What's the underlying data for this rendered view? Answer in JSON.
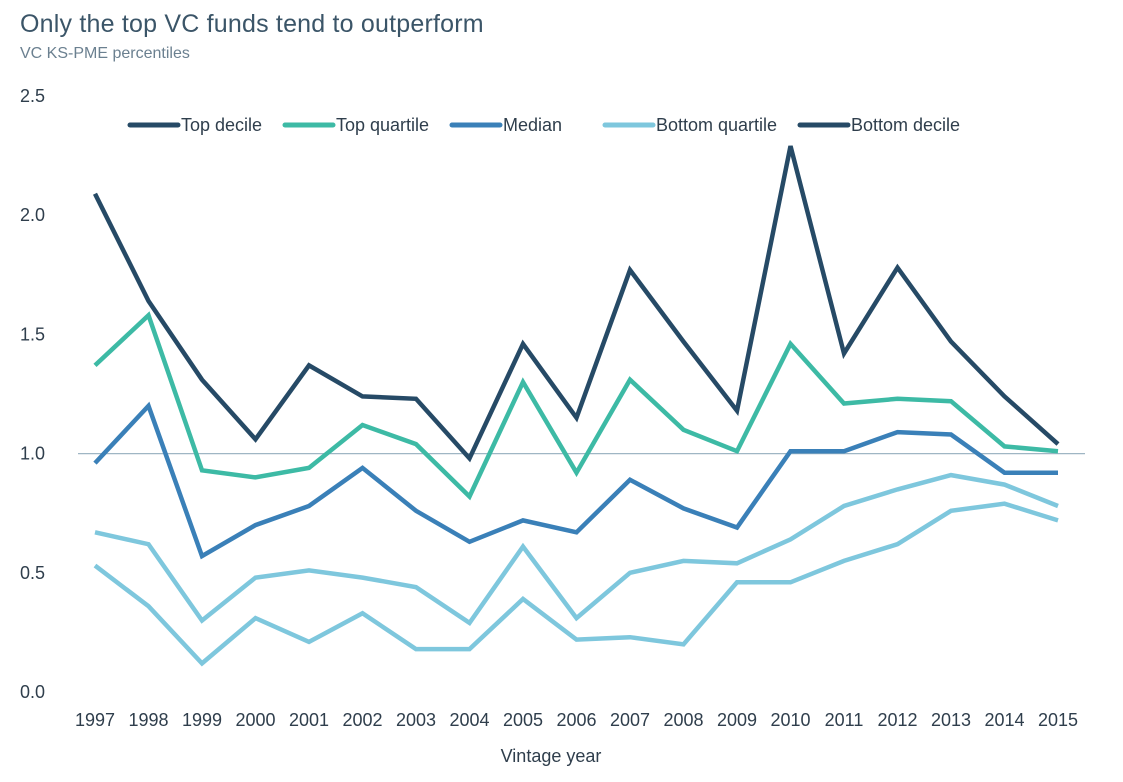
{
  "chart_data": {
    "type": "line",
    "title": "Only the top VC funds tend to outperform",
    "subtitle": "VC KS-PME percentiles",
    "xlabel": "Vintage year",
    "ylabel": "",
    "ylim": [
      0,
      2.5
    ],
    "yticks": [
      "0.0",
      "0.5",
      "1.0",
      "1.5",
      "2.0",
      "2.5"
    ],
    "reference_line": 1.0,
    "grid": false,
    "legend_position": "top",
    "categories": [
      "1997",
      "1998",
      "1999",
      "2000",
      "2001",
      "2002",
      "2003",
      "2004",
      "2005",
      "2006",
      "2007",
      "2008",
      "2009",
      "2010",
      "2011",
      "2012",
      "2013",
      "2014",
      "2015"
    ],
    "series": [
      {
        "name": "Top decile",
        "color": "#264a66",
        "values": [
          2.09,
          1.64,
          1.31,
          1.06,
          1.37,
          1.24,
          1.23,
          0.98,
          1.46,
          1.15,
          1.77,
          1.47,
          1.18,
          2.29,
          1.42,
          1.78,
          1.47,
          1.24,
          1.04
        ]
      },
      {
        "name": "Top quartile",
        "color": "#3dbaa5",
        "values": [
          1.37,
          1.58,
          0.93,
          0.9,
          0.94,
          1.12,
          1.04,
          0.82,
          1.3,
          0.92,
          1.31,
          1.1,
          1.01,
          1.46,
          1.21,
          1.23,
          1.22,
          1.03,
          1.01
        ]
      },
      {
        "name": "Median",
        "color": "#3a80b8",
        "values": [
          0.96,
          1.2,
          0.57,
          0.7,
          0.78,
          0.94,
          0.76,
          0.63,
          0.72,
          0.67,
          0.89,
          0.77,
          0.69,
          1.01,
          1.01,
          1.09,
          1.08,
          0.92,
          0.92
        ]
      },
      {
        "name": "Bottom quartile",
        "color": "#7ec7dd",
        "values": [
          0.67,
          0.62,
          0.3,
          0.48,
          0.51,
          0.48,
          0.44,
          0.29,
          0.61,
          0.31,
          0.5,
          0.55,
          0.54,
          0.64,
          0.78,
          0.85,
          0.91,
          0.87,
          0.78
        ]
      },
      {
        "name": "Bottom decile",
        "color": "#7ec7dd",
        "legend_color": "#264a66",
        "values": [
          0.53,
          0.36,
          0.12,
          0.31,
          0.21,
          0.33,
          0.18,
          0.18,
          0.39,
          0.22,
          0.23,
          0.2,
          0.46,
          0.46,
          0.55,
          0.62,
          0.76,
          0.79,
          0.72
        ]
      }
    ]
  }
}
